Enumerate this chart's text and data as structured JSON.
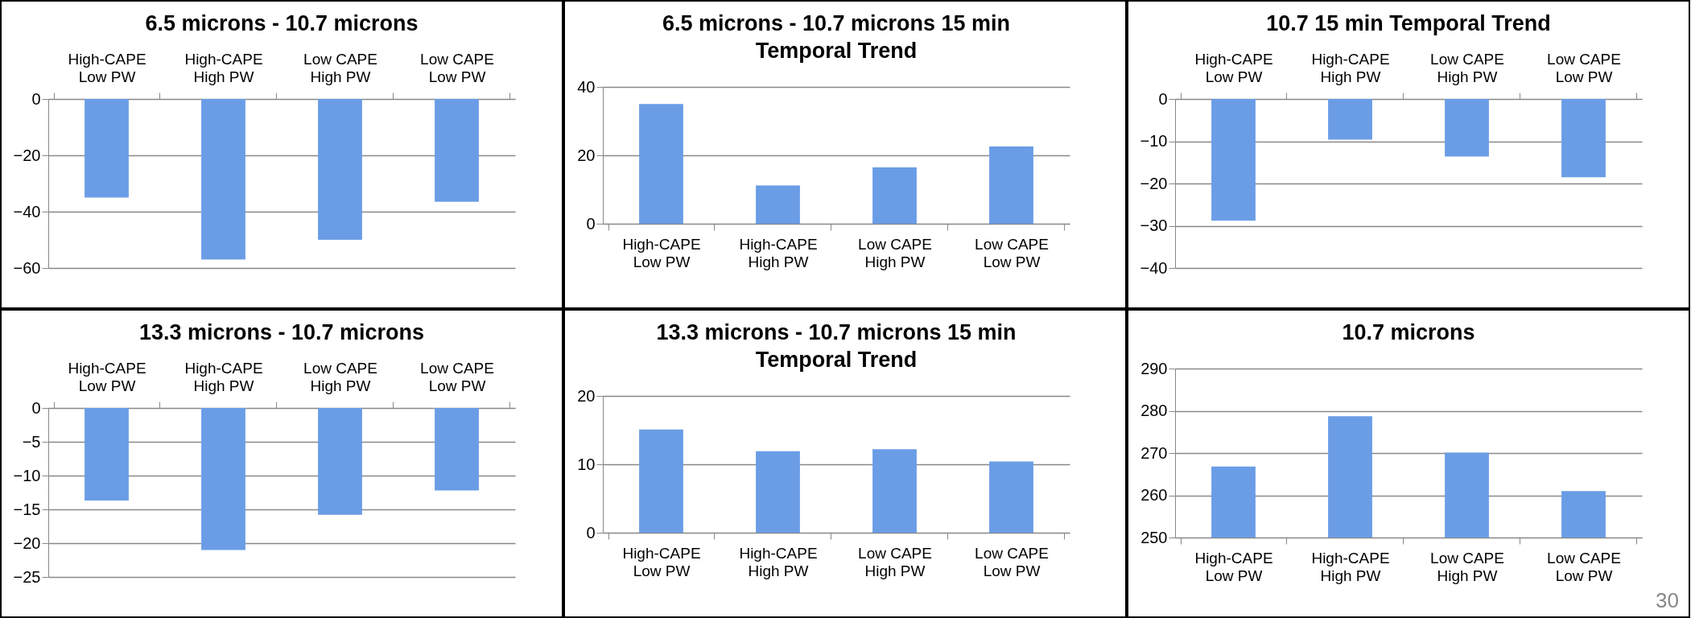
{
  "chart_data": [
    {
      "type": "bar",
      "title": "6.5 microns - 10.7 microns",
      "categories": [
        "High-CAPE Low PW",
        "High-CAPE High PW",
        "Low CAPE High PW",
        "Low CAPE Low PW"
      ],
      "values": [
        -35,
        -57,
        -50,
        -36.5
      ],
      "color": "#6a9de6",
      "ylim": [
        -60,
        0
      ],
      "yticks": [
        -60,
        -40,
        -20,
        0
      ],
      "grid": "y"
    },
    {
      "type": "bar",
      "title": "6.5 microns - 10.7 microns 15 min Temporal Trend",
      "categories": [
        "High-CAPE Low PW",
        "High-CAPE High PW",
        "Low CAPE High PW",
        "Low CAPE Low PW"
      ],
      "values": [
        35,
        11.2,
        16.5,
        22.6
      ],
      "color": "#6a9de6",
      "ylim": [
        0,
        40
      ],
      "yticks": [
        0,
        20,
        40
      ],
      "grid": "y"
    },
    {
      "type": "bar",
      "title": "10.7 15 min Temporal Trend",
      "categories": [
        "High-CAPE Low PW",
        "High-CAPE High PW",
        "Low CAPE High PW",
        "Low CAPE Low PW"
      ],
      "values": [
        -28.8,
        -9.6,
        -13.6,
        -18.5
      ],
      "color": "#6a9de6",
      "ylim": [
        -40,
        0
      ],
      "yticks": [
        -40,
        -30,
        -20,
        -10,
        0
      ],
      "grid": "y"
    },
    {
      "type": "bar",
      "title": "13.3 microns - 10.7 microns",
      "categories": [
        "High-CAPE Low PW",
        "High-CAPE High PW",
        "Low CAPE High PW",
        "Low CAPE Low PW"
      ],
      "values": [
        -13.7,
        -21,
        -15.8,
        -12.2
      ],
      "color": "#6a9de6",
      "ylim": [
        -25,
        0
      ],
      "yticks": [
        -25,
        -20,
        -15,
        -10,
        -5,
        0
      ],
      "grid": "y"
    },
    {
      "type": "bar",
      "title": "13.3 microns - 10.7 microns 15 min Temporal Trend",
      "categories": [
        "High-CAPE Low PW",
        "High-CAPE High PW",
        "Low CAPE High PW",
        "Low CAPE Low PW"
      ],
      "values": [
        15.1,
        11.9,
        12.2,
        10.4
      ],
      "color": "#6a9de6",
      "ylim": [
        0,
        20
      ],
      "yticks": [
        0,
        10,
        20
      ],
      "grid": "y"
    },
    {
      "type": "bar",
      "title": "10.7 microns",
      "categories": [
        "High-CAPE Low PW",
        "High-CAPE High PW",
        "Low CAPE High PW",
        "Low CAPE Low PW"
      ],
      "values": [
        266.8,
        278.7,
        270.1,
        261
      ],
      "color": "#6a9de6",
      "ylim": [
        250,
        290
      ],
      "yticks": [
        250,
        260,
        270,
        280,
        290
      ],
      "grid": "y",
      "annotations": [
        "30"
      ]
    }
  ]
}
